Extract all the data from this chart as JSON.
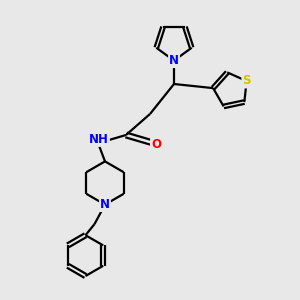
{
  "background_color": "#e8e8e8",
  "bond_color": "#000000",
  "atom_colors": {
    "N": "#0000ff",
    "O": "#ff0000",
    "S": "#d4c000",
    "H": "#808080",
    "C": "#000000"
  },
  "figsize": [
    3.0,
    3.0
  ],
  "dpi": 100,
  "xlim": [
    0,
    10
  ],
  "ylim": [
    0,
    10
  ]
}
